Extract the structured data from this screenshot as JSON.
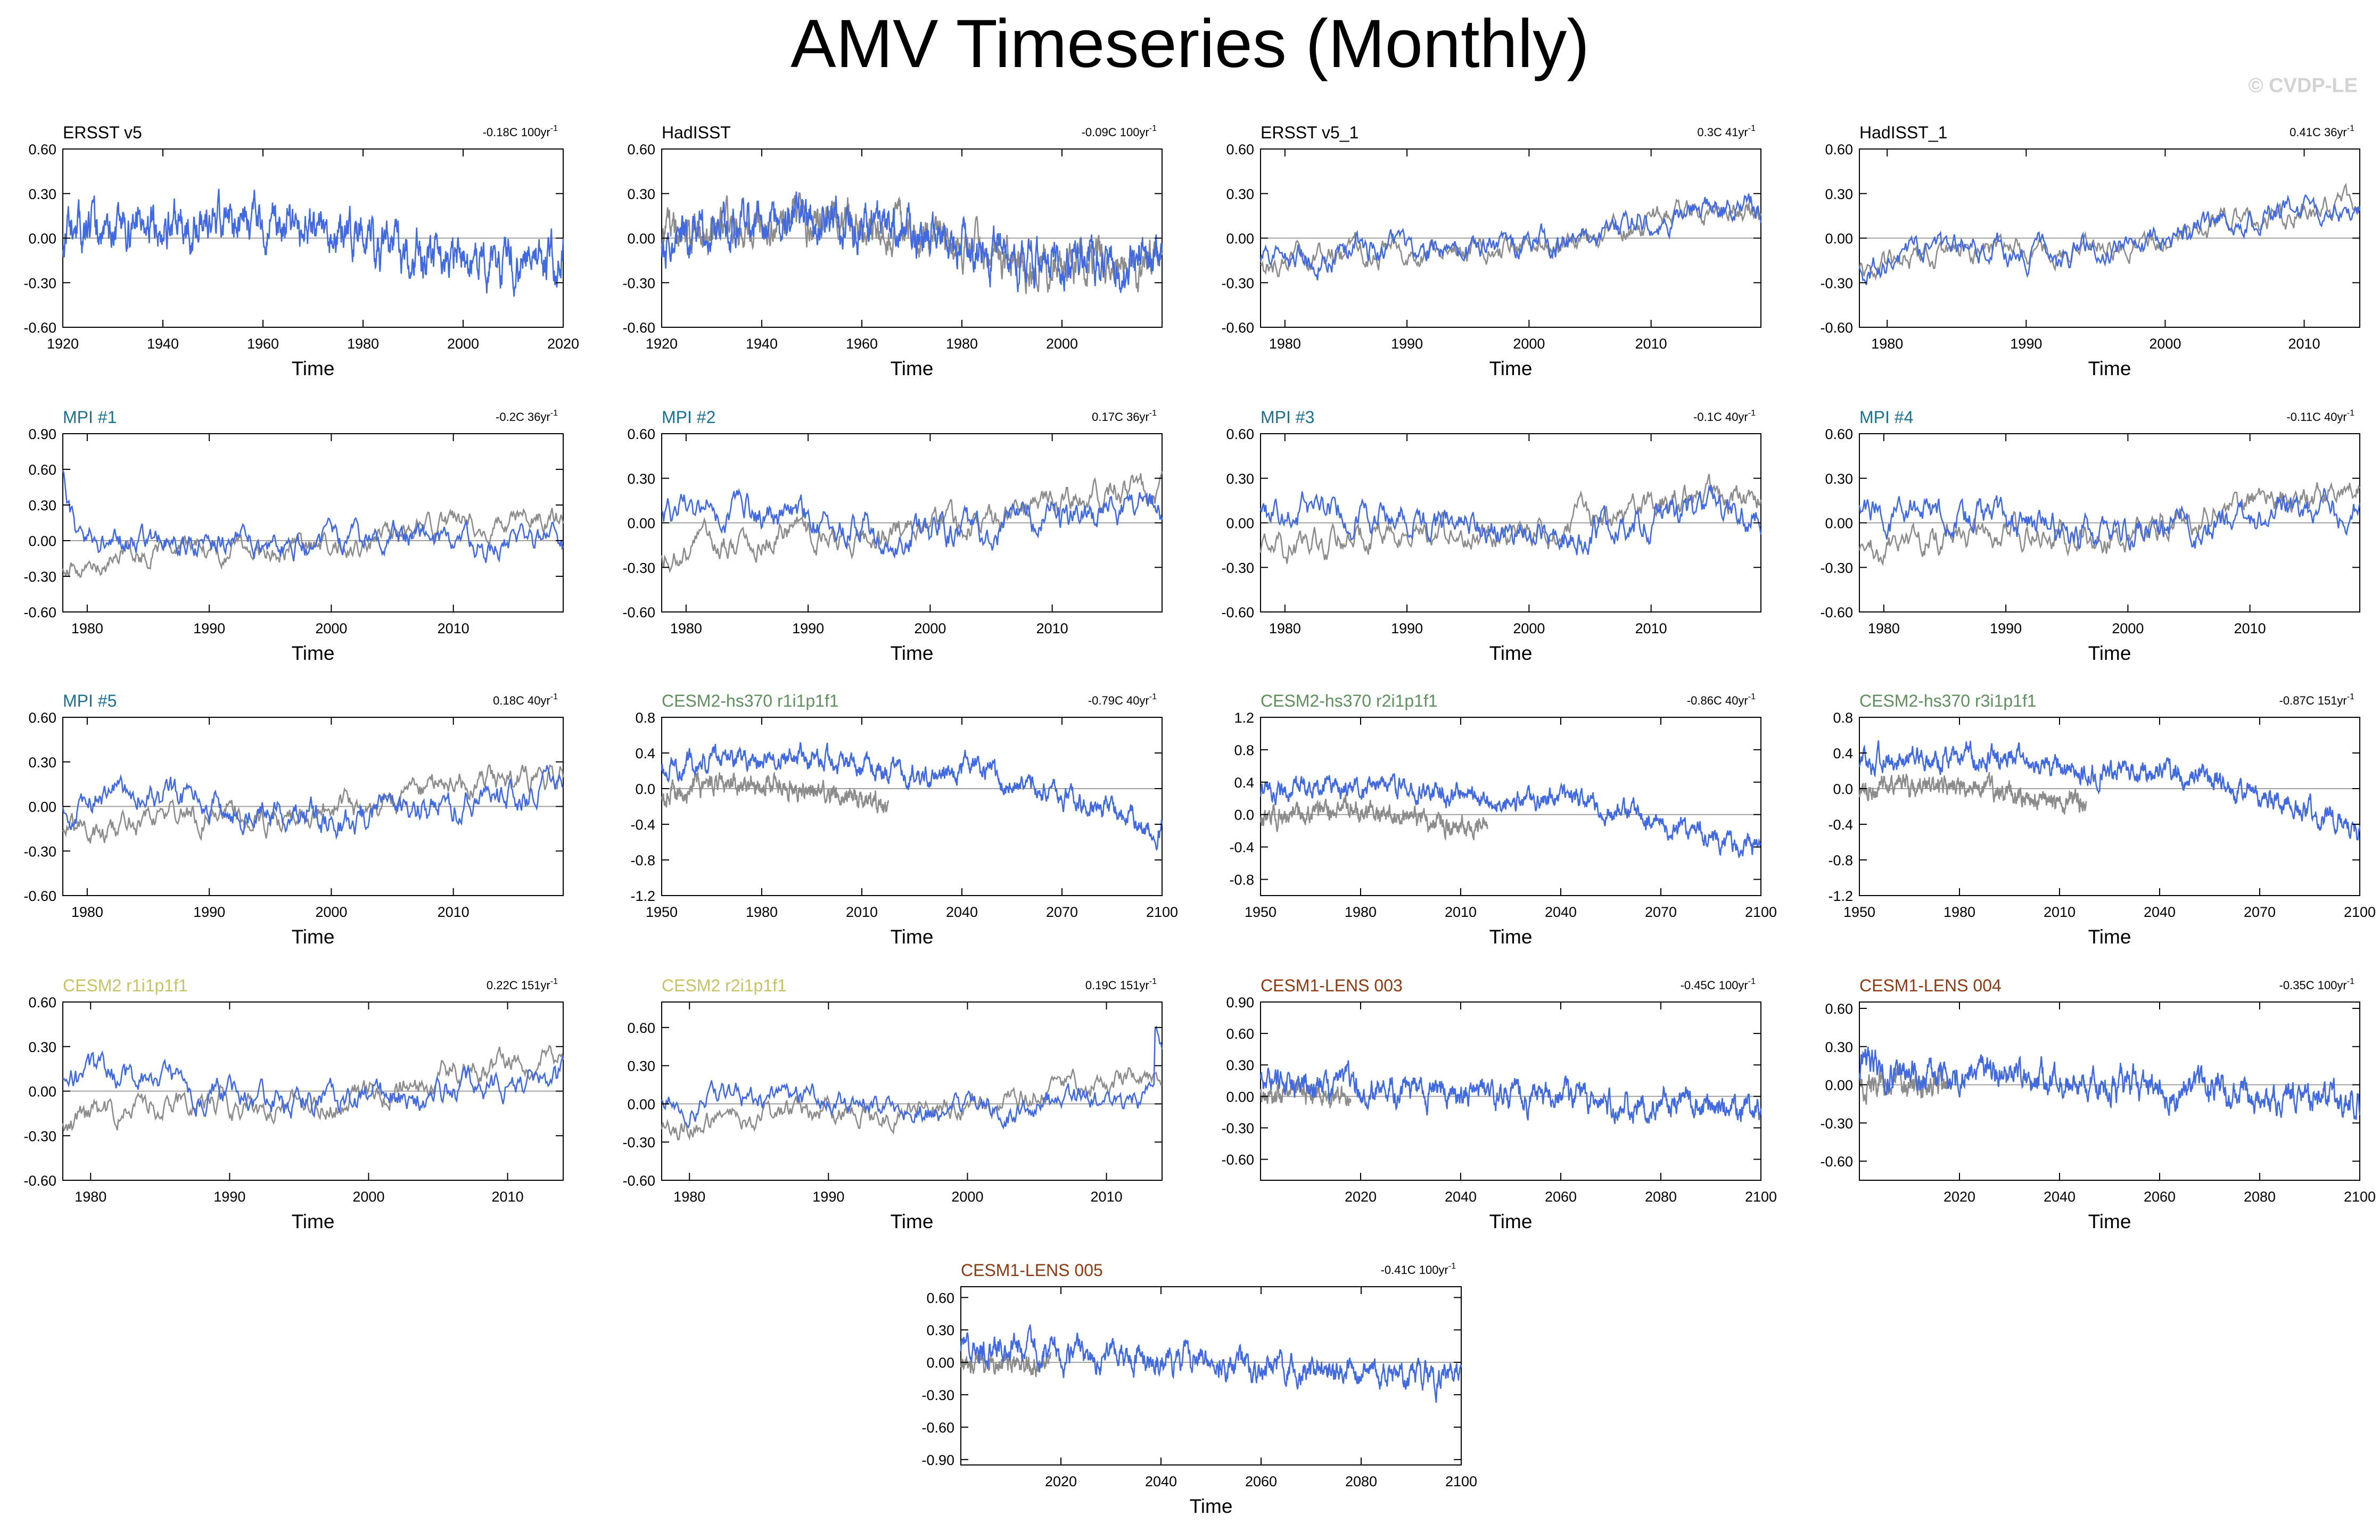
{
  "page": {
    "title": "AMV Timeseries (Monthly)",
    "watermark": "© CVDP-LE"
  },
  "colors": {
    "series_line": "#4169e1",
    "obs_line": "#8c8c8c",
    "zero_line": "#a0a0a0",
    "title_obs": "#000000",
    "title_mpi": "#1b6f8f",
    "title_cesm2_hs370": "#5f8f5f",
    "title_cesm2": "#c8c266",
    "title_cesm1_lens": "#8b3a12"
  },
  "chart_data": [
    {
      "type": "line",
      "title": "ERSST v5",
      "title_color": "title_obs",
      "trend_label": "-0.18C 100yr",
      "trend_exp": "-1",
      "xlabel": "Time",
      "xlim": [
        1920,
        2020
      ],
      "xticks": [
        1920,
        1940,
        1960,
        1980,
        2000,
        2020
      ],
      "ylim": [
        -0.6,
        0.6
      ],
      "yticks": [
        "0.60",
        "0.30",
        "0.00",
        "-0.30",
        "-0.60"
      ],
      "series": [
        {
          "name": "ERSST v5",
          "color": "series_line",
          "amp": 0.2,
          "trend": -0.18,
          "seed": 11,
          "shape": "amv20c"
        }
      ]
    },
    {
      "type": "line",
      "title": "HadISST",
      "title_color": "title_obs",
      "trend_label": "-0.09C 100yr",
      "trend_exp": "-1",
      "xlabel": "Time",
      "xlim": [
        1920,
        2020
      ],
      "xticks": [
        1920,
        1940,
        1960,
        1980,
        2000
      ],
      "ylim": [
        -0.6,
        0.6
      ],
      "yticks": [
        "0.60",
        "0.30",
        "0.00",
        "-0.30",
        "-0.60"
      ],
      "series": [
        {
          "name": "ERSST v5",
          "color": "obs_line",
          "amp": 0.18,
          "trend": -0.1,
          "seed": 12,
          "shape": "amv20c"
        },
        {
          "name": "HadISST",
          "color": "series_line",
          "amp": 0.2,
          "trend": -0.09,
          "seed": 13,
          "shape": "amv20c"
        }
      ]
    },
    {
      "type": "line",
      "title": "ERSST v5_1",
      "title_color": "title_obs",
      "trend_label": "0.3C 41yr",
      "trend_exp": "-1",
      "xlabel": "Time",
      "xlim": [
        1978,
        2019
      ],
      "xticks": [
        1980,
        1990,
        2000,
        2010
      ],
      "ylim": [
        -0.6,
        0.6
      ],
      "yticks": [
        "0.60",
        "0.30",
        "0.00",
        "-0.30",
        "-0.60"
      ],
      "series": [
        {
          "name": "ref",
          "color": "obs_line",
          "amp": 0.12,
          "trend": 0.3,
          "seed": 21,
          "shape": "sat"
        },
        {
          "name": "ERSST v5_1",
          "color": "series_line",
          "amp": 0.13,
          "trend": 0.3,
          "seed": 22,
          "shape": "sat"
        }
      ]
    },
    {
      "type": "line",
      "title": "HadISST_1",
      "title_color": "title_obs",
      "trend_label": "0.41C 36yr",
      "trend_exp": "-1",
      "xlabel": "Time",
      "xlim": [
        1978,
        2014
      ],
      "xticks": [
        1980,
        1990,
        2000,
        2010
      ],
      "ylim": [
        -0.6,
        0.6
      ],
      "yticks": [
        "0.60",
        "0.30",
        "0.00",
        "-0.30",
        "-0.60"
      ],
      "series": [
        {
          "name": "ref",
          "color": "obs_line",
          "amp": 0.12,
          "trend": 0.35,
          "seed": 31,
          "shape": "sat"
        },
        {
          "name": "HadISST_1",
          "color": "series_line",
          "amp": 0.13,
          "trend": 0.41,
          "seed": 32,
          "shape": "sat"
        }
      ]
    },
    {
      "type": "line",
      "title": "MPI #1",
      "title_color": "title_mpi",
      "trend_label": "-0.2C 36yr",
      "trend_exp": "-1",
      "xlabel": "Time",
      "xlim": [
        1978,
        2019
      ],
      "xticks": [
        1980,
        1990,
        2000,
        2010
      ],
      "ylim": [
        -0.6,
        0.9
      ],
      "yticks": [
        "0.90",
        "0.60",
        "0.30",
        "0.00",
        "-0.30",
        "-0.60"
      ],
      "series": [
        {
          "name": "obs",
          "color": "obs_line",
          "amp": 0.13,
          "trend": 0.3,
          "seed": 41,
          "shape": "sat"
        },
        {
          "name": "MPI #1",
          "color": "series_line",
          "amp": 0.15,
          "trend": -0.2,
          "seed": 42,
          "shape": "spike"
        }
      ]
    },
    {
      "type": "line",
      "title": "MPI #2",
      "title_color": "title_mpi",
      "trend_label": "0.17C 36yr",
      "trend_exp": "-1",
      "xlabel": "Time",
      "xlim": [
        1978,
        2019
      ],
      "xticks": [
        1980,
        1990,
        2000,
        2010
      ],
      "ylim": [
        -0.6,
        0.6
      ],
      "yticks": [
        "0.60",
        "0.30",
        "0.00",
        "-0.30",
        "-0.60"
      ],
      "series": [
        {
          "name": "obs",
          "color": "obs_line",
          "amp": 0.13,
          "trend": 0.3,
          "seed": 43,
          "shape": "sat"
        },
        {
          "name": "MPI #2",
          "color": "series_line",
          "amp": 0.15,
          "trend": 0.17,
          "seed": 44,
          "shape": "flat"
        }
      ]
    },
    {
      "type": "line",
      "title": "MPI #3",
      "title_color": "title_mpi",
      "trend_label": "-0.1C 40yr",
      "trend_exp": "-1",
      "xlabel": "Time",
      "xlim": [
        1978,
        2019
      ],
      "xticks": [
        1980,
        1990,
        2000,
        2010
      ],
      "ylim": [
        -0.6,
        0.6
      ],
      "yticks": [
        "0.60",
        "0.30",
        "0.00",
        "-0.30",
        "-0.60"
      ],
      "series": [
        {
          "name": "obs",
          "color": "obs_line",
          "amp": 0.13,
          "trend": 0.3,
          "seed": 45,
          "shape": "sat"
        },
        {
          "name": "MPI #3",
          "color": "series_line",
          "amp": 0.15,
          "trend": -0.1,
          "seed": 46,
          "shape": "flat"
        }
      ]
    },
    {
      "type": "line",
      "title": "MPI #4",
      "title_color": "title_mpi",
      "trend_label": "-0.11C 40yr",
      "trend_exp": "-1",
      "xlabel": "Time",
      "xlim": [
        1978,
        2019
      ],
      "xticks": [
        1980,
        1990,
        2000,
        2010
      ],
      "ylim": [
        -0.6,
        0.6
      ],
      "yticks": [
        "0.60",
        "0.30",
        "0.00",
        "-0.30",
        "-0.60"
      ],
      "series": [
        {
          "name": "obs",
          "color": "obs_line",
          "amp": 0.13,
          "trend": 0.3,
          "seed": 47,
          "shape": "sat"
        },
        {
          "name": "MPI #4",
          "color": "series_line",
          "amp": 0.15,
          "trend": -0.11,
          "seed": 48,
          "shape": "flat"
        }
      ]
    },
    {
      "type": "line",
      "title": "MPI #5",
      "title_color": "title_mpi",
      "trend_label": "0.18C 40yr",
      "trend_exp": "-1",
      "xlabel": "Time",
      "xlim": [
        1978,
        2019
      ],
      "xticks": [
        1980,
        1990,
        2000,
        2010
      ],
      "ylim": [
        -0.6,
        0.6
      ],
      "yticks": [
        "0.60",
        "0.30",
        "0.00",
        "-0.30",
        "-0.60"
      ],
      "series": [
        {
          "name": "obs",
          "color": "obs_line",
          "amp": 0.13,
          "trend": 0.3,
          "seed": 49,
          "shape": "sat"
        },
        {
          "name": "MPI #5",
          "color": "series_line",
          "amp": 0.15,
          "trend": 0.18,
          "seed": 50,
          "shape": "flat"
        }
      ]
    },
    {
      "type": "line",
      "title": "CESM2-hs370 r1i1p1f1",
      "title_color": "title_cesm2_hs370",
      "trend_label": "-0.79C 40yr",
      "trend_exp": "-1",
      "xlabel": "Time",
      "xlim": [
        1950,
        2100
      ],
      "xticks": [
        1950,
        1980,
        2010,
        2040,
        2070,
        2100
      ],
      "ylim": [
        -1.2,
        0.8
      ],
      "yticks": [
        "0.8",
        "0.4",
        "0.0",
        "-0.4",
        "-0.8",
        "-1.2"
      ],
      "series": [
        {
          "name": "obs",
          "color": "obs_line",
          "amp": 0.14,
          "trend": 0,
          "seed": 51,
          "shape": "obs1950",
          "xmax": 2018
        },
        {
          "name": "CESM2-hs370 r1i1p1f1",
          "color": "series_line",
          "amp": 0.16,
          "trend": 0,
          "seed": 52,
          "shape": "hs370"
        }
      ]
    },
    {
      "type": "line",
      "title": "CESM2-hs370 r2i1p1f1",
      "title_color": "title_cesm2_hs370",
      "trend_label": "-0.86C 40yr",
      "trend_exp": "-1",
      "xlabel": "Time",
      "xlim": [
        1950,
        2100
      ],
      "xticks": [
        1950,
        1980,
        2010,
        2040,
        2070,
        2100
      ],
      "ylim": [
        -1.0,
        1.2
      ],
      "yticks": [
        "1.2",
        "0.8",
        "0.4",
        "0.0",
        "-0.4",
        "-0.8"
      ],
      "series": [
        {
          "name": "obs",
          "color": "obs_line",
          "amp": 0.14,
          "trend": 0,
          "seed": 53,
          "shape": "obs1950",
          "xmax": 2018
        },
        {
          "name": "CESM2-hs370 r2i1p1f1",
          "color": "series_line",
          "amp": 0.17,
          "trend": 0,
          "seed": 54,
          "shape": "hs370"
        }
      ]
    },
    {
      "type": "line",
      "title": "CESM2-hs370 r3i1p1f1",
      "title_color": "title_cesm2_hs370",
      "trend_label": "-0.87C 151yr",
      "trend_exp": "-1",
      "xlabel": "Time",
      "xlim": [
        1950,
        2100
      ],
      "xticks": [
        1950,
        1980,
        2010,
        2040,
        2070,
        2100
      ],
      "ylim": [
        -1.2,
        0.8
      ],
      "yticks": [
        "0.8",
        "0.4",
        "0.0",
        "-0.4",
        "-0.8",
        "-1.2"
      ],
      "series": [
        {
          "name": "obs",
          "color": "obs_line",
          "amp": 0.14,
          "trend": 0,
          "seed": 55,
          "shape": "obs1950",
          "xmax": 2018
        },
        {
          "name": "CESM2-hs370 r3i1p1f1",
          "color": "series_line",
          "amp": 0.17,
          "trend": 0,
          "seed": 56,
          "shape": "hs370"
        }
      ]
    },
    {
      "type": "line",
      "title": "CESM2 r1i1p1f1",
      "title_color": "title_cesm2",
      "trend_label": "0.22C 151yr",
      "trend_exp": "-1",
      "xlabel": "Time",
      "xlim": [
        1978,
        2014
      ],
      "xticks": [
        1980,
        1990,
        2000,
        2010
      ],
      "ylim": [
        -0.6,
        0.6
      ],
      "yticks": [
        "0.60",
        "0.30",
        "0.00",
        "-0.30",
        "-0.60"
      ],
      "series": [
        {
          "name": "obs",
          "color": "obs_line",
          "amp": 0.13,
          "trend": 0.3,
          "seed": 57,
          "shape": "sat"
        },
        {
          "name": "CESM2 r1i1p1f1",
          "color": "series_line",
          "amp": 0.14,
          "trend": 0.22,
          "seed": 58,
          "shape": "flat"
        }
      ]
    },
    {
      "type": "line",
      "title": "CESM2 r2i1p1f1",
      "title_color": "title_cesm2",
      "trend_label": "0.19C 151yr",
      "trend_exp": "-1",
      "xlabel": "Time",
      "xlim": [
        1978,
        2014
      ],
      "xticks": [
        1980,
        1990,
        2000,
        2010
      ],
      "ylim": [
        -0.6,
        0.8
      ],
      "yticks": [
        "0.60",
        "0.30",
        "0.00",
        "-0.30",
        "-0.60"
      ],
      "series": [
        {
          "name": "obs",
          "color": "obs_line",
          "amp": 0.13,
          "trend": 0.3,
          "seed": 59,
          "shape": "sat"
        },
        {
          "name": "CESM2 r2i1p1f1",
          "color": "series_line",
          "amp": 0.14,
          "trend": 0.19,
          "seed": 60,
          "shape": "endspike"
        }
      ]
    },
    {
      "type": "line",
      "title": "CESM1-LENS 003",
      "title_color": "title_cesm1_lens",
      "trend_label": "-0.45C 100yr",
      "trend_exp": "-1",
      "xlabel": "Time",
      "xlim": [
        2000,
        2100
      ],
      "xticks": [
        2020,
        2040,
        2060,
        2080,
        2100
      ],
      "ylim": [
        -0.8,
        0.9
      ],
      "yticks": [
        "0.90",
        "0.60",
        "0.30",
        "0.00",
        "-0.30",
        "-0.60"
      ],
      "series": [
        {
          "name": "obs",
          "color": "obs_line",
          "amp": 0.13,
          "trend": 0.2,
          "seed": 61,
          "shape": "short",
          "xmax": 2018
        },
        {
          "name": "CESM1-LENS 003",
          "color": "series_line",
          "amp": 0.17,
          "trend": -0.45,
          "seed": 62,
          "shape": "lens"
        }
      ]
    },
    {
      "type": "line",
      "title": "CESM1-LENS 004",
      "title_color": "title_cesm1_lens",
      "trend_label": "-0.35C 100yr",
      "trend_exp": "-1",
      "xlabel": "Time",
      "xlim": [
        2000,
        2100
      ],
      "xticks": [
        2020,
        2040,
        2060,
        2080,
        2100
      ],
      "ylim": [
        -0.75,
        0.65
      ],
      "yticks": [
        "0.60",
        "0.30",
        "0.00",
        "-0.30",
        "-0.60"
      ],
      "series": [
        {
          "name": "obs",
          "color": "obs_line",
          "amp": 0.13,
          "trend": 0.2,
          "seed": 63,
          "shape": "short",
          "xmax": 2018
        },
        {
          "name": "CESM1-LENS 004",
          "color": "series_line",
          "amp": 0.16,
          "trend": -0.35,
          "seed": 64,
          "shape": "lens"
        }
      ]
    },
    {
      "type": "line",
      "title": "CESM1-LENS 005",
      "title_color": "title_cesm1_lens",
      "trend_label": "-0.41C 100yr",
      "trend_exp": "-1",
      "xlabel": "Time",
      "xlim": [
        2000,
        2100
      ],
      "xticks": [
        2020,
        2040,
        2060,
        2080,
        2100
      ],
      "ylim": [
        -0.95,
        0.7
      ],
      "yticks": [
        "0.60",
        "0.30",
        "0.00",
        "-0.30",
        "-0.60",
        "-0.90"
      ],
      "series": [
        {
          "name": "obs",
          "color": "obs_line",
          "amp": 0.13,
          "trend": 0.2,
          "seed": 65,
          "shape": "short",
          "xmax": 2018
        },
        {
          "name": "CESM1-LENS 005",
          "color": "series_line",
          "amp": 0.17,
          "trend": -0.41,
          "seed": 66,
          "shape": "lens"
        }
      ]
    }
  ]
}
